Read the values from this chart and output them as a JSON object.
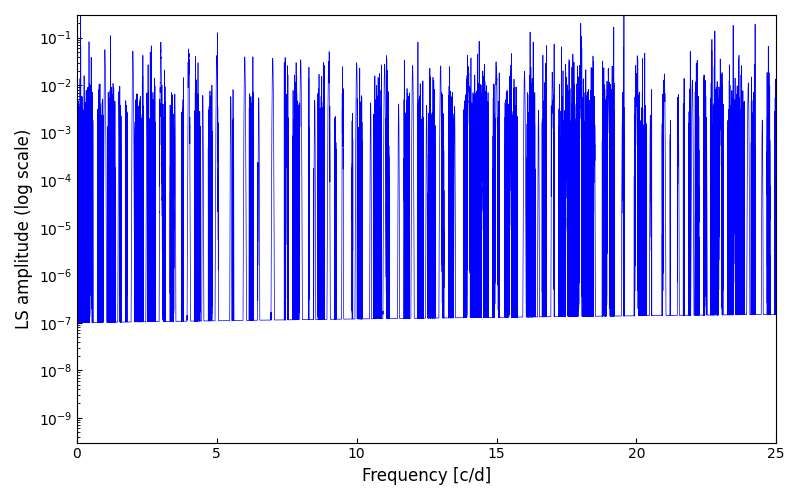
{
  "title": "",
  "xlabel": "Frequency [c/d]",
  "ylabel": "LS amplitude (log scale)",
  "xlim": [
    0,
    25
  ],
  "ylim": [
    3e-10,
    0.3
  ],
  "line_color": "#0000ff",
  "line_width": 0.5,
  "freq_max": 25.0,
  "n_points": 75000,
  "seed": 12345,
  "background_color": "#ffffff",
  "figsize": [
    8.0,
    5.0
  ],
  "dpi": 100
}
